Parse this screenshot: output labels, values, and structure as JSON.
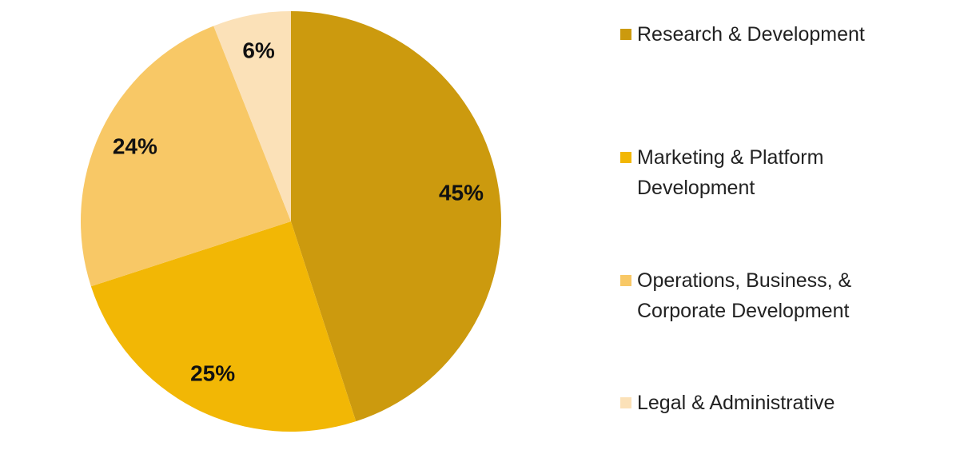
{
  "chart_data": {
    "type": "pie",
    "categories": [
      "Research & Development",
      "Marketing & Platform Development",
      "Operations, Business, & Corporate Development",
      "Legal & Administrative"
    ],
    "values": [
      45,
      25,
      24,
      6
    ],
    "value_labels": [
      "45%",
      "25%",
      "24%",
      "6%"
    ],
    "colors": [
      "#cc9a0e",
      "#f2b705",
      "#f8c866",
      "#fbe1b8"
    ],
    "legend": "right"
  }
}
